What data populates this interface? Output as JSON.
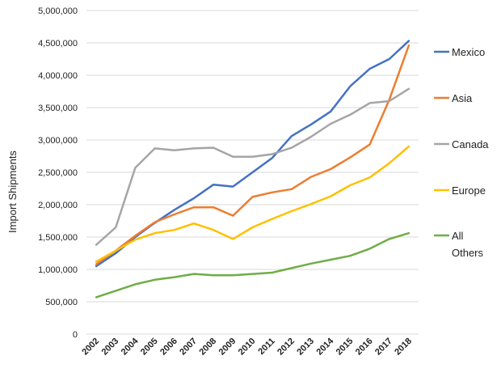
{
  "chart_data": {
    "type": "line",
    "title": "",
    "xlabel": "",
    "ylabel": "Import Shipments",
    "ylim": [
      0,
      5000000
    ],
    "y_ticks": [
      0,
      500000,
      1000000,
      1500000,
      2000000,
      2500000,
      3000000,
      3500000,
      4000000,
      4500000,
      5000000
    ],
    "y_tick_labels": [
      "0",
      "500,000",
      "1,000,000",
      "1,500,000",
      "2,000,000",
      "2,500,000",
      "3,000,000",
      "3,500,000",
      "4,000,000",
      "4,500,000",
      "5,000,000"
    ],
    "grid": true,
    "legend_position": "right",
    "categories": [
      "2002",
      "2003",
      "2004",
      "2005",
      "2006",
      "2007",
      "2008",
      "2009",
      "2010",
      "2011",
      "2012",
      "2013",
      "2014",
      "2015",
      "2016",
      "2017",
      "2018"
    ],
    "series": [
      {
        "name": "Mexico",
        "label_lines": [
          "Mexico"
        ],
        "color": "#4472C4",
        "values": [
          1050000,
          1250000,
          1500000,
          1720000,
          1920000,
          2100000,
          2310000,
          2280000,
          2500000,
          2720000,
          3060000,
          3240000,
          3440000,
          3830000,
          4100000,
          4250000,
          4530000
        ]
      },
      {
        "name": "Asia",
        "label_lines": [
          "Asia"
        ],
        "color": "#ED7D31",
        "values": [
          1080000,
          1290000,
          1520000,
          1730000,
          1850000,
          1960000,
          1960000,
          1830000,
          2120000,
          2190000,
          2240000,
          2430000,
          2550000,
          2730000,
          2930000,
          3620000,
          4460000
        ]
      },
      {
        "name": "Canada",
        "label_lines": [
          "Canada"
        ],
        "color": "#A5A5A5",
        "values": [
          1380000,
          1650000,
          2570000,
          2870000,
          2840000,
          2870000,
          2880000,
          2740000,
          2740000,
          2780000,
          2880000,
          3050000,
          3250000,
          3390000,
          3570000,
          3600000,
          3790000
        ]
      },
      {
        "name": "Europe",
        "label_lines": [
          "Europe"
        ],
        "color": "#FFC000",
        "values": [
          1120000,
          1290000,
          1460000,
          1560000,
          1610000,
          1710000,
          1610000,
          1470000,
          1650000,
          1780000,
          1900000,
          2010000,
          2130000,
          2300000,
          2420000,
          2640000,
          2900000
        ]
      },
      {
        "name": "All Others",
        "label_lines": [
          "All",
          "Others"
        ],
        "color": "#70AD47",
        "values": [
          570000,
          670000,
          770000,
          840000,
          880000,
          930000,
          910000,
          910000,
          930000,
          950000,
          1020000,
          1090000,
          1150000,
          1210000,
          1320000,
          1470000,
          1560000
        ]
      }
    ]
  }
}
